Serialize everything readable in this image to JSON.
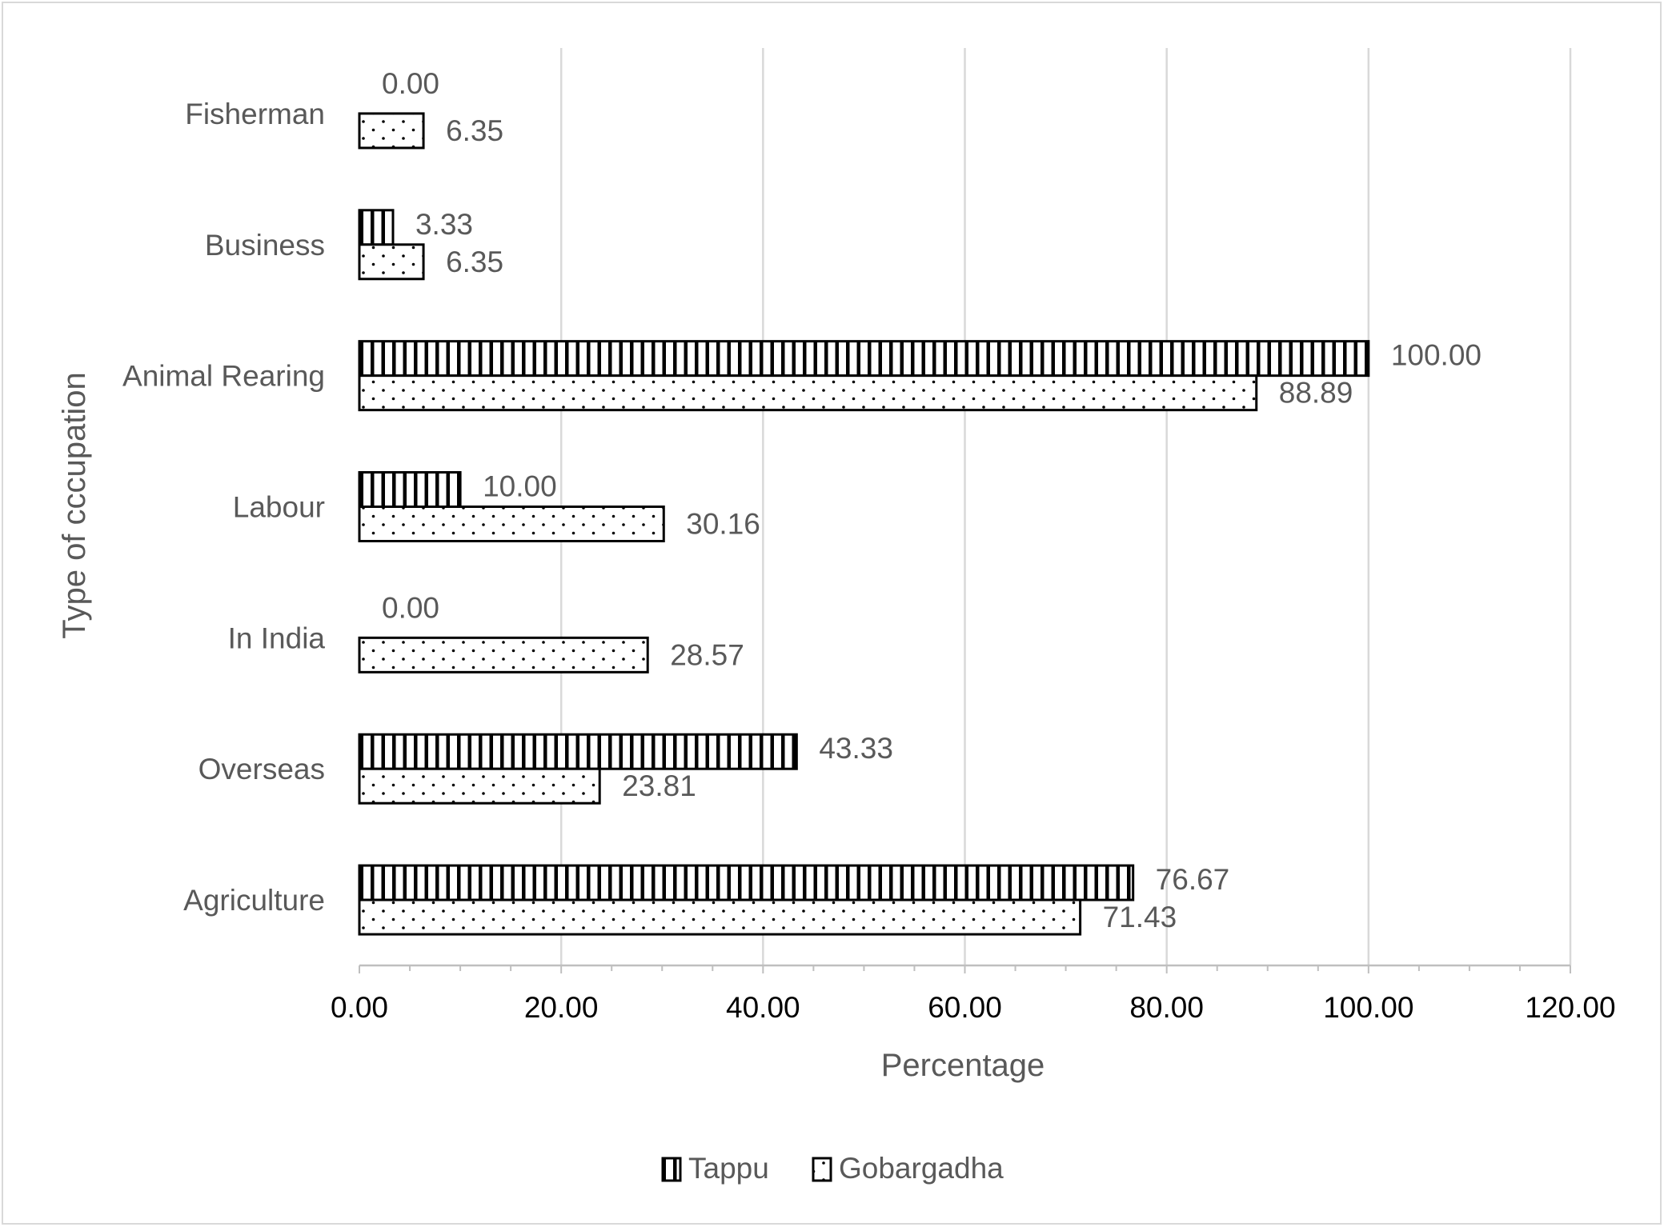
{
  "chart_data": {
    "type": "bar",
    "orientation": "horizontal",
    "categories": [
      "Agriculture",
      "Overseas",
      "In India",
      "Labour",
      "Animal Rearing",
      "Business",
      "Fisherman"
    ],
    "series": [
      {
        "name": "Tappu",
        "pattern": "vertical-stripes",
        "values": [
          76.67,
          43.33,
          0.0,
          10.0,
          100.0,
          3.33,
          0.0
        ],
        "labels": [
          "76.67",
          "43.33",
          "0.00",
          "10.00",
          "100.00",
          "3.33",
          "0.00"
        ]
      },
      {
        "name": "Gobargadha",
        "pattern": "dots",
        "values": [
          71.43,
          23.81,
          28.57,
          30.16,
          88.89,
          6.35,
          6.35
        ],
        "labels": [
          "71.43",
          "23.81",
          "28.57",
          "30.16",
          "88.89",
          "6.35",
          "6.35"
        ]
      }
    ],
    "xlabel": "Percentage",
    "ylabel": "Type of cccupation",
    "xlim": [
      0,
      120
    ],
    "xticks": [
      "0.00",
      "20.00",
      "40.00",
      "60.00",
      "80.00",
      "100.00",
      "120.00"
    ],
    "grid": "vertical-major",
    "legend_position": "bottom",
    "colors": {
      "bar_stroke": "#000000",
      "bar_fill": "#ffffff",
      "grid": "#d9d9d9",
      "text": "#595959"
    }
  }
}
